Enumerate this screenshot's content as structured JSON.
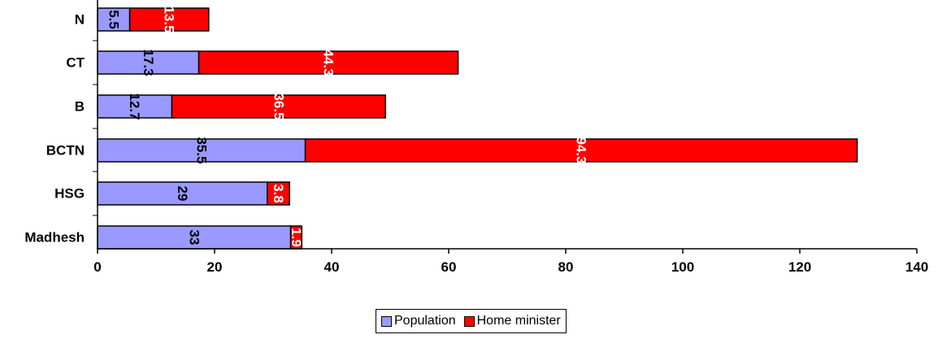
{
  "chart_data": {
    "type": "bar",
    "orientation": "horizontal",
    "stacked": true,
    "categories": [
      "N",
      "CT",
      "B",
      "BCTN",
      "HSG",
      "Madhesh"
    ],
    "series": [
      {
        "name": "Population",
        "color": "#9999ff",
        "values": [
          5.5,
          17.3,
          12.7,
          35.5,
          29,
          33
        ]
      },
      {
        "name": "Home minister",
        "color": "#ff0000",
        "values": [
          13.5,
          44.3,
          36.5,
          94.3,
          3.8,
          1.9
        ]
      }
    ],
    "data_labels": [
      [
        "5.5",
        "17.3",
        "12.7",
        "35.5",
        "29",
        "33"
      ],
      [
        "13.5",
        "44.3",
        "36.5",
        "94.3",
        "3.8",
        "1.9"
      ]
    ],
    "xlim": [
      0,
      140
    ],
    "xticks": [
      "0",
      "20",
      "40",
      "60",
      "80",
      "100",
      "120",
      "140"
    ],
    "grid": false,
    "legend_position": "bottom"
  }
}
